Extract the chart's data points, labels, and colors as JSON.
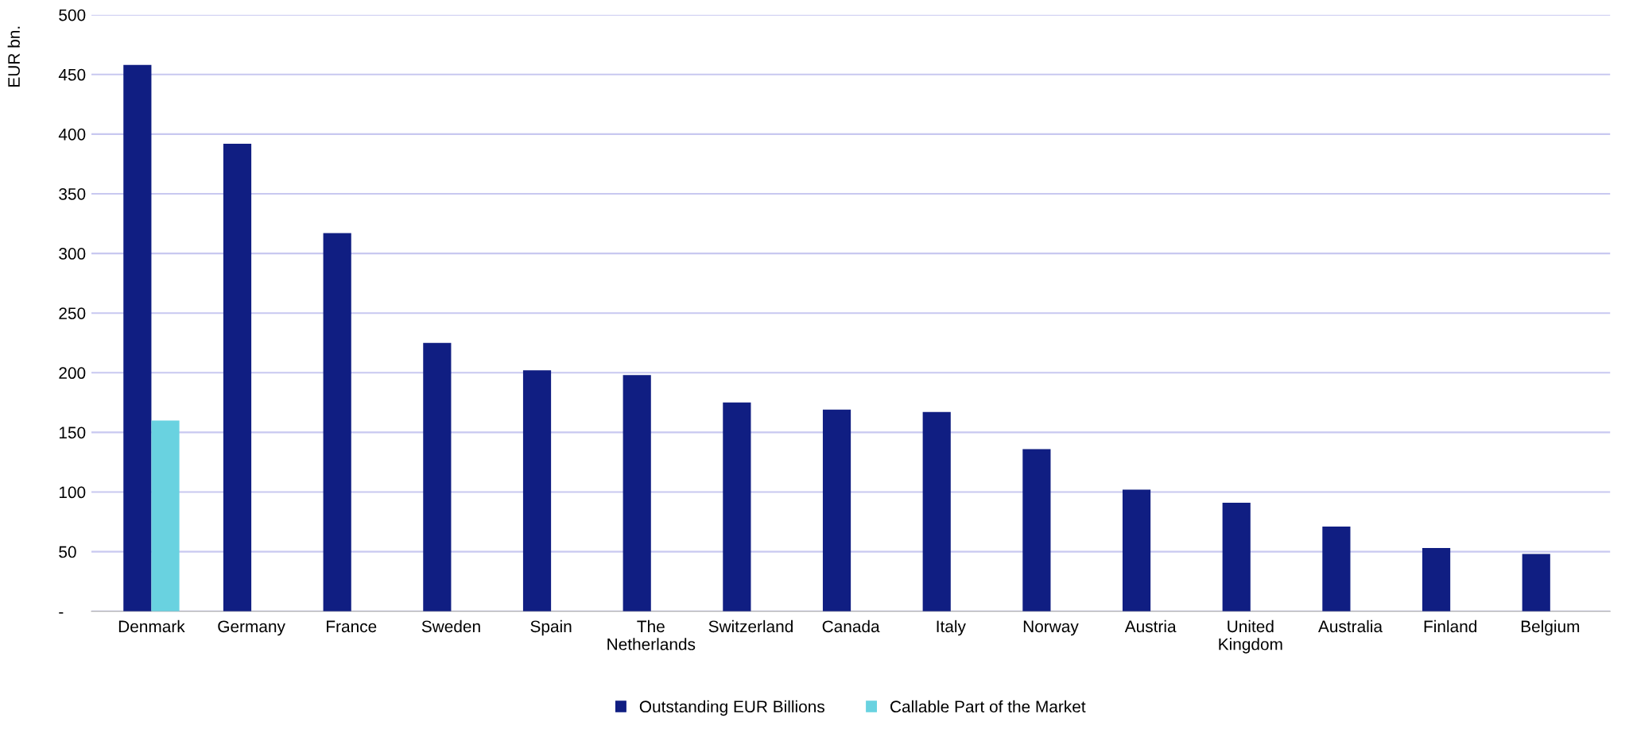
{
  "chart_data": {
    "type": "bar",
    "ylabel": "EUR bn.",
    "categories": [
      "Denmark",
      "Germany",
      "France",
      "Sweden",
      "Spain",
      "The\nNetherlands",
      "Switzerland",
      "Canada",
      "Italy",
      "Norway",
      "Austria",
      "United\nKingdom",
      "Australia",
      "Finland",
      "Belgium"
    ],
    "series": [
      {
        "name": "Outstanding EUR Billions",
        "color": "#101e82",
        "values": [
          458,
          392,
          317,
          225,
          202,
          198,
          175,
          169,
          167,
          136,
          102,
          91,
          71,
          53,
          48
        ]
      },
      {
        "name": "Callable Part of the Market",
        "color": "#69d2e0",
        "values": [
          160,
          null,
          null,
          null,
          null,
          null,
          null,
          null,
          null,
          null,
          null,
          null,
          null,
          null,
          null
        ]
      }
    ],
    "ylim": [
      0,
      500
    ],
    "yticks": [
      {
        "value": 0,
        "label": "-"
      },
      50,
      100,
      150,
      200,
      250,
      300,
      350,
      400,
      450,
      500
    ],
    "grid": "y",
    "legend": "bottom"
  }
}
